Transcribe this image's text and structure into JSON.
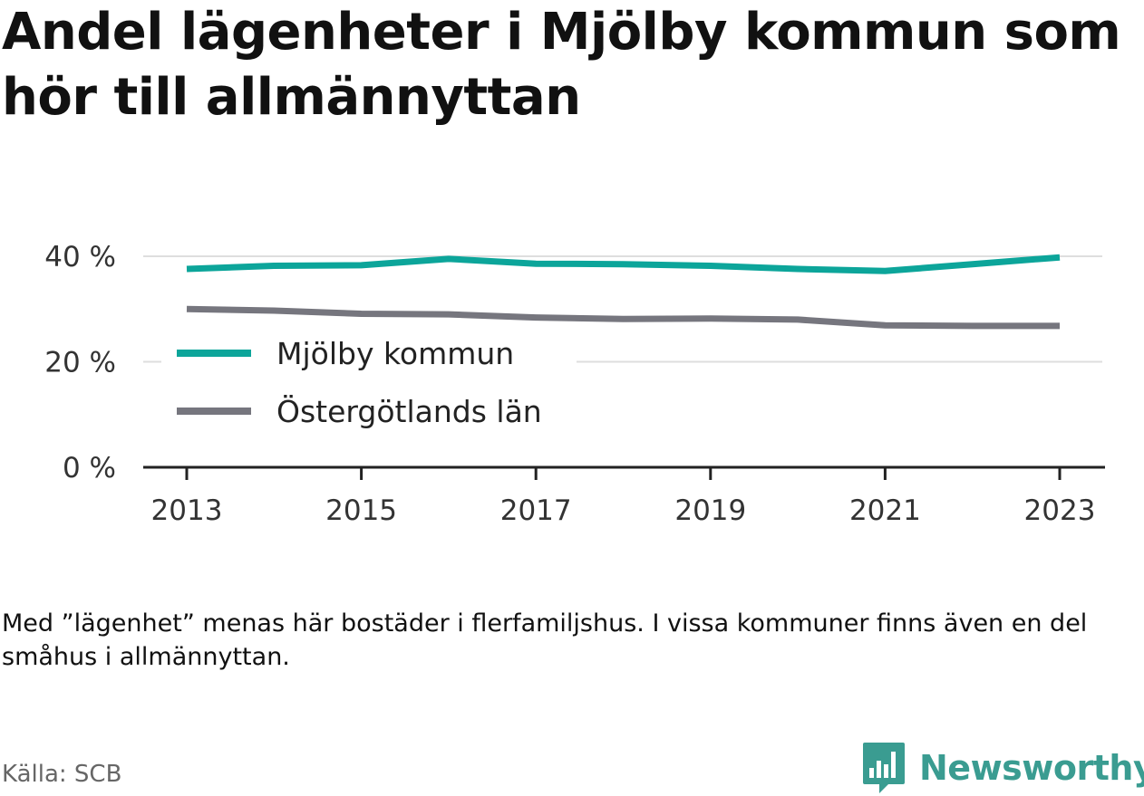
{
  "title": "Andel lägenheter i Mjölby kommun som hör till allmännyttan",
  "note": "Med ”lägenhet” menas här bostäder i flerfamiljshus. I vissa kommuner finns även en del småhus i allmännyttan.",
  "source": "Källa: SCB",
  "brand": {
    "name": "Newsworthy",
    "icon": "bar-chart-speech-bubble-icon",
    "color": "#3a9c91"
  },
  "chart_data": {
    "type": "line",
    "x": [
      2013,
      2014,
      2015,
      2016,
      2017,
      2018,
      2019,
      2020,
      2021,
      2022,
      2023
    ],
    "series": [
      {
        "name": "Mjölby kommun",
        "color": "#0ca59a",
        "values": [
          37.6,
          38.2,
          38.3,
          39.5,
          38.6,
          38.5,
          38.2,
          37.6,
          37.2,
          38.5,
          39.8
        ]
      },
      {
        "name": "Östergötlands län",
        "color": "#76767e",
        "values": [
          30.0,
          29.7,
          29.1,
          29.0,
          28.4,
          28.1,
          28.2,
          28.0,
          26.9,
          26.8,
          26.8
        ]
      }
    ],
    "ylim": [
      0,
      40
    ],
    "y_ticks": [
      {
        "value": 0,
        "label": "0 %"
      },
      {
        "value": 20,
        "label": "20 %"
      },
      {
        "value": 40,
        "label": "40 %"
      }
    ],
    "x_ticks": [
      {
        "value": 2013,
        "label": "2013"
      },
      {
        "value": 2015,
        "label": "2015"
      },
      {
        "value": 2017,
        "label": "2017"
      },
      {
        "value": 2019,
        "label": "2019"
      },
      {
        "value": 2021,
        "label": "2021"
      },
      {
        "value": 2023,
        "label": "2023"
      }
    ],
    "grid": true,
    "legend_position": "inside-left"
  }
}
